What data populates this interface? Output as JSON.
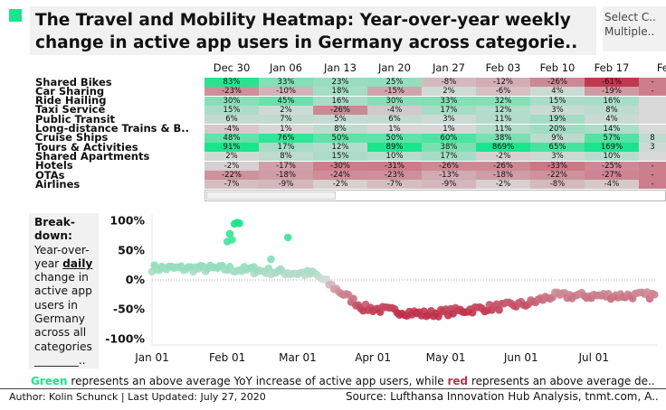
{
  "logo": {
    "text": "···"
  },
  "title": {
    "line1": "The Travel and Mobility Heatmap: Year-over-year weekly",
    "line2": "change in active app users in Germany across categorie.."
  },
  "select": {
    "line1": "Select C..",
    "line2": "Multiple.."
  },
  "colors": {
    "positive": "#19e68c",
    "negative": "#c0304a",
    "neutral": "#d9d9d9"
  },
  "chart_data": [
    {
      "type": "heatmap",
      "title": "",
      "columns": [
        "Dec 30",
        "Jan 06",
        "Jan 13",
        "Jan 20",
        "Jan 27",
        "Feb 03",
        "Feb 10",
        "Feb 17",
        "Feb"
      ],
      "rows": [
        "Shared Bikes",
        "Car Sharing",
        "Ride Hailing",
        "Taxi Service",
        "Public Transit",
        "Long-distance Trains & B..",
        "Cruise Ships",
        "Tours & Activities",
        "Shared Apartments",
        "Hotels",
        "OTAs",
        "Airlines"
      ],
      "values": [
        [
          "83%",
          "33%",
          "23%",
          "25%",
          "-8%",
          "-12%",
          "-26%",
          "-61%",
          "-"
        ],
        [
          "-23%",
          "-10%",
          "18%",
          "-15%",
          "2%",
          "-6%",
          "4%",
          "-19%",
          "-"
        ],
        [
          "30%",
          "45%",
          "16%",
          "30%",
          "33%",
          "32%",
          "15%",
          "16%",
          ""
        ],
        [
          "15%",
          "2%",
          "-26%",
          "-4%",
          "17%",
          "12%",
          "3%",
          "8%",
          ""
        ],
        [
          "6%",
          "7%",
          "5%",
          "6%",
          "3%",
          "11%",
          "19%",
          "4%",
          ""
        ],
        [
          "-4%",
          "1%",
          "8%",
          "1%",
          "1%",
          "11%",
          "20%",
          "14%",
          ""
        ],
        [
          "48%",
          "76%",
          "50%",
          "50%",
          "60%",
          "38%",
          "9%",
          "57%",
          "8"
        ],
        [
          "91%",
          "17%",
          "12%",
          "89%",
          "38%",
          "869%",
          "65%",
          "169%",
          "3"
        ],
        [
          "2%",
          "8%",
          "15%",
          "10%",
          "17%",
          "-2%",
          "3%",
          "10%",
          ""
        ],
        [
          "-2%",
          "-17%",
          "-30%",
          "-31%",
          "-26%",
          "-26%",
          "-33%",
          "-25%",
          "-"
        ],
        [
          "-22%",
          "-18%",
          "-24%",
          "-23%",
          "-13%",
          "-18%",
          "-22%",
          "-27%",
          "-"
        ],
        [
          "-7%",
          "-9%",
          "-2%",
          "-7%",
          "-9%",
          "-2%",
          "-8%",
          "-4%",
          "-"
        ]
      ]
    },
    {
      "type": "scatter",
      "title": "",
      "xlabel": "",
      "ylabel": "",
      "x_ticks": [
        "Jan 01",
        "Feb 01",
        "Mar 01",
        "Apr 01",
        "May 01",
        "Jun 01",
        "Jul 01"
      ],
      "y_ticks": [
        "100%",
        "50%",
        "0%",
        "-50%",
        "-100%"
      ],
      "ylim": [
        -1.1,
        1.1
      ],
      "xlim": [
        "2020-01-01",
        "2020-07-27"
      ],
      "zero_line": "dotted",
      "segments": [
        {
          "from": "2020-01-01",
          "to": "2020-01-31",
          "start": 0.2,
          "end": 0.19
        },
        {
          "from": "2020-01-31",
          "to": "2020-03-08",
          "start": 0.19,
          "end": 0.1
        },
        {
          "from": "2020-03-08",
          "to": "2020-03-28",
          "start": 0.1,
          "end": -0.47
        },
        {
          "from": "2020-03-28",
          "to": "2020-04-23",
          "start": -0.47,
          "end": -0.58
        },
        {
          "from": "2020-04-23",
          "to": "2020-06-04",
          "start": -0.58,
          "end": -0.4
        },
        {
          "from": "2020-06-04",
          "to": "2020-06-14",
          "start": -0.4,
          "end": -0.27
        },
        {
          "from": "2020-06-14",
          "to": "2020-07-27",
          "start": -0.27,
          "end": -0.26
        }
      ],
      "outliers": [
        {
          "x": "2020-02-01",
          "y": 0.65
        },
        {
          "x": "2020-02-02",
          "y": 0.78
        },
        {
          "x": "2020-02-03",
          "y": 0.68
        },
        {
          "x": "2020-02-04",
          "y": 0.95
        },
        {
          "x": "2020-02-05",
          "y": 0.97
        },
        {
          "x": "2020-02-06",
          "y": 0.96
        },
        {
          "x": "2020-02-12",
          "y": 0.22
        },
        {
          "x": "2020-02-19",
          "y": 0.35
        },
        {
          "x": "2020-02-26",
          "y": 0.72
        }
      ]
    }
  ],
  "breakdown": {
    "title": "Break-down:",
    "pre": "Year-over-year",
    "emph": "daily",
    "post": "change in active app users in Germany across all categories",
    "trail": "________.."
  },
  "footnote": {
    "green_word": "Green",
    "middle": " represents an above average YoY increase of active app users, while ",
    "red_word": "red",
    "end": " represents an above average de.."
  },
  "author": "Author: Kolin Schunck | Last Updated: July 27, 2020",
  "source": "Source: Lufthansa Innovation Hub Analysis, tnmt.com, A.."
}
